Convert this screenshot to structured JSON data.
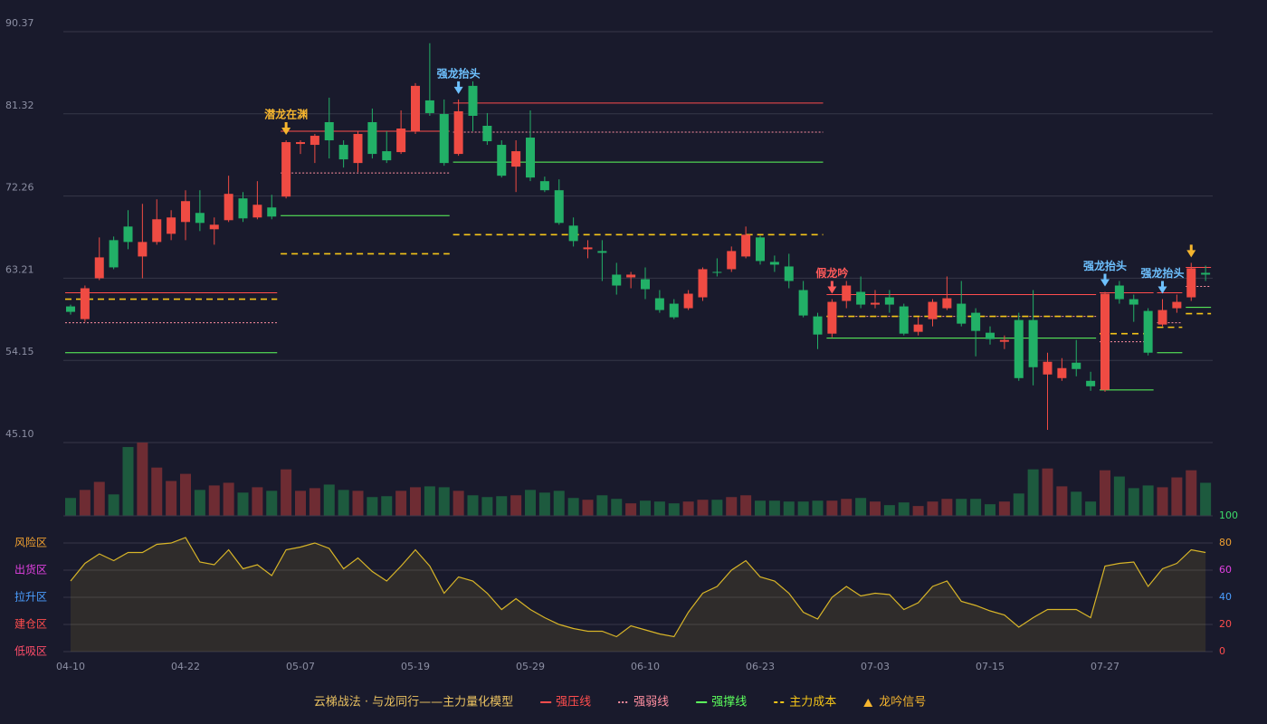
{
  "chart_data": {
    "type": "candlestick",
    "title": "云梯战法 · 与龙同行——主力量化模型",
    "categories": [
      "04-10",
      null,
      null,
      null,
      null,
      null,
      null,
      null,
      "04-22",
      null,
      null,
      null,
      null,
      null,
      null,
      null,
      "05-07",
      null,
      null,
      null,
      null,
      null,
      null,
      null,
      "05-19",
      null,
      null,
      null,
      null,
      null,
      null,
      null,
      "05-29",
      null,
      null,
      null,
      null,
      null,
      null,
      null,
      "06-10",
      null,
      null,
      null,
      null,
      null,
      null,
      null,
      "06-23",
      null,
      null,
      null,
      null,
      null,
      null,
      null,
      "07-03",
      null,
      null,
      null,
      null,
      null,
      null,
      null,
      "07-15",
      null,
      null,
      null,
      null,
      null,
      null,
      null,
      "07-27",
      null,
      null,
      null,
      null,
      null,
      null,
      null
    ],
    "open": [
      60.1,
      58.7,
      63.2,
      67.4,
      68.9,
      65.6,
      67.2,
      68.1,
      69.4,
      70.4,
      68.6,
      69.6,
      72.0,
      69.9,
      71.0,
      72.2,
      78.0,
      77.9,
      80.4,
      77.9,
      75.9,
      80.4,
      77.2,
      77.1,
      79.4,
      82.8,
      81.3,
      76.9,
      84.4,
      80.0,
      77.9,
      75.5,
      78.7,
      73.9,
      72.9,
      69.0,
      66.4,
      66.2,
      63.6,
      63.3,
      63.1,
      61.0,
      60.4,
      59.9,
      61.1,
      63.9,
      64.2,
      65.6,
      67.7,
      65.0,
      64.5,
      61.9,
      59.0,
      57.1,
      60.7,
      61.7,
      60.3,
      61.1,
      60.1,
      57.3,
      58.7,
      59.9,
      60.4,
      59.4,
      57.2,
      56.2,
      58.6,
      58.6,
      52.6,
      52.2,
      53.9,
      51.9,
      50.9,
      62.4,
      60.9,
      59.6,
      58.1,
      59.9,
      61.1,
      63.8
    ],
    "high": [
      60.3,
      62.4,
      67.7,
      67.8,
      70.7,
      71.4,
      71.9,
      70.7,
      72.9,
      72.9,
      69.9,
      74.5,
      72.7,
      73.9,
      72.4,
      78.4,
      78.4,
      79.1,
      83.1,
      78.4,
      79.4,
      81.9,
      79.4,
      81.7,
      84.7,
      89.1,
      82.9,
      82.9,
      84.9,
      81.4,
      78.4,
      78.4,
      81.7,
      74.4,
      74.1,
      69.9,
      67.4,
      67.4,
      64.9,
      63.9,
      64.4,
      61.9,
      60.9,
      61.9,
      64.4,
      65.4,
      66.7,
      68.9,
      67.9,
      65.7,
      65.9,
      62.9,
      59.4,
      60.9,
      62.9,
      63.4,
      61.9,
      61.9,
      60.4,
      58.9,
      60.9,
      63.4,
      62.9,
      59.9,
      57.9,
      56.9,
      59.4,
      61.9,
      55.0,
      54.4,
      56.4,
      52.9,
      61.7,
      62.9,
      61.4,
      59.9,
      60.9,
      61.4,
      64.9,
      64.6
    ],
    "low": [
      59.2,
      58.4,
      63.0,
      64.2,
      66.4,
      63.2,
      66.9,
      67.4,
      67.4,
      68.4,
      66.9,
      69.4,
      69.4,
      69.7,
      69.7,
      72.0,
      76.9,
      75.9,
      76.4,
      75.4,
      74.9,
      76.4,
      75.9,
      76.9,
      79.1,
      81.1,
      75.6,
      76.7,
      79.4,
      77.9,
      74.3,
      72.7,
      73.9,
      72.7,
      69.1,
      66.7,
      65.4,
      62.9,
      61.4,
      62.1,
      60.9,
      59.4,
      58.7,
      59.7,
      60.7,
      63.4,
      63.9,
      65.4,
      64.7,
      63.9,
      62.1,
      58.9,
      55.4,
      56.7,
      59.9,
      59.9,
      59.9,
      59.4,
      56.9,
      56.9,
      57.9,
      59.7,
      57.9,
      54.6,
      55.9,
      55.4,
      51.9,
      51.4,
      46.5,
      51.9,
      52.4,
      50.8,
      50.7,
      60.4,
      58.4,
      54.7,
      57.9,
      59.4,
      60.7,
      62.9
    ],
    "close": [
      59.5,
      62.1,
      65.5,
      64.4,
      67.2,
      67.2,
      69.7,
      69.9,
      71.7,
      69.3,
      69.1,
      72.5,
      69.8,
      71.3,
      70.0,
      78.2,
      78.2,
      78.9,
      78.4,
      76.3,
      79.1,
      76.9,
      76.2,
      79.7,
      84.4,
      81.4,
      75.9,
      81.6,
      81.1,
      78.3,
      74.5,
      77.2,
      74.3,
      72.9,
      69.3,
      67.3,
      66.6,
      66.0,
      62.4,
      63.6,
      62.0,
      59.7,
      58.9,
      61.5,
      64.2,
      63.8,
      66.2,
      68.0,
      65.1,
      64.7,
      62.9,
      59.1,
      57.0,
      60.6,
      62.4,
      60.3,
      60.5,
      60.3,
      57.1,
      58.1,
      60.6,
      61.0,
      58.2,
      57.4,
      56.5,
      56.4,
      52.2,
      53.4,
      54.0,
      53.3,
      53.2,
      51.3,
      61.5,
      60.9,
      60.3,
      55.0,
      59.7,
      60.6,
      64.3,
      63.6
    ],
    "ylim": [
      45.1,
      90.37
    ],
    "yticks": [
      {
        "value": 45.1,
        "label": "45.10"
      },
      54.15,
      63.21,
      72.26,
      81.32,
      90.37
    ],
    "grid": true,
    "up_color": "#ef4b43",
    "down_color": "#22b067",
    "volume": {
      "values": [
        20,
        29,
        38,
        24,
        77,
        82,
        54,
        39,
        47,
        29,
        34,
        37,
        26,
        32,
        28,
        52,
        28,
        31,
        35,
        29,
        28,
        21,
        22,
        28,
        32,
        33,
        32,
        28,
        23,
        21,
        22,
        23,
        29,
        26,
        28,
        20,
        18,
        23,
        19,
        14,
        17,
        16,
        14,
        16,
        18,
        18,
        21,
        23,
        17,
        17,
        16,
        16,
        17,
        17,
        19,
        20,
        16,
        12,
        15,
        11,
        16,
        19,
        19,
        19,
        13,
        16,
        25,
        52,
        53,
        33,
        27,
        16,
        51,
        44,
        31,
        34,
        32,
        43,
        51,
        37
      ],
      "ylim": [
        0,
        82
      ],
      "up_color": "#6e2c33",
      "down_color": "#1d5a3e"
    },
    "oscillator": {
      "values": [
        52,
        65,
        72,
        67,
        73,
        73,
        79,
        80,
        84,
        66,
        64,
        75,
        61,
        64,
        56,
        75,
        77,
        80,
        76,
        61,
        69,
        59,
        52,
        63,
        75,
        63,
        43,
        55,
        52,
        43,
        31,
        39,
        31,
        25,
        20,
        17,
        15,
        15,
        11,
        19,
        16,
        13,
        11,
        29,
        43,
        48,
        60,
        67,
        55,
        52,
        43,
        29,
        24,
        40,
        48,
        41,
        43,
        42,
        31,
        36,
        48,
        52,
        37,
        34,
        30,
        27,
        18,
        25,
        31,
        31,
        31,
        25,
        63,
        65,
        66,
        48,
        61,
        65,
        75,
        73
      ],
      "ylim": [
        0,
        100
      ],
      "yticks": [
        0,
        20,
        40,
        60,
        80,
        100
      ],
      "ytick_colors": [
        "#ff4d4d",
        "#ff4d4d",
        "#4a9eff",
        "#e040e0",
        "#f0a030",
        "#3ddc6a"
      ],
      "color": "#d8b528",
      "zones": [
        {
          "label": "风险区",
          "value": 80,
          "color": "#f0a030"
        },
        {
          "label": "出货区",
          "value": 60,
          "color": "#e040e0"
        },
        {
          "label": "拉升区",
          "value": 40,
          "color": "#4a9eff"
        },
        {
          "label": "建仓区",
          "value": 20,
          "color": "#ff4d4d"
        },
        {
          "label": "低吸区",
          "value": 0,
          "color": "#ff4d6a"
        }
      ]
    },
    "levels": [
      {
        "start": 0,
        "end": 14,
        "pressure": 61.6,
        "weak": 58.3,
        "support": 55.0,
        "cost": 60.9
      },
      {
        "start": 15,
        "end": 26,
        "pressure": 79.4,
        "weak": 74.8,
        "support": 70.1,
        "cost": 65.9
      },
      {
        "start": 27,
        "end": 52,
        "pressure": 82.5,
        "weak": 79.3,
        "support": 76.0,
        "cost": 68.0
      },
      {
        "start": 53,
        "end": 71,
        "pressure": 61.4,
        "weak": 59.0,
        "support": 56.6,
        "cost": 59.0
      },
      {
        "start": 72,
        "end": 75,
        "pressure": 61.6,
        "weak": 56.2,
        "support": 50.9,
        "cost": 57.1
      },
      {
        "start": 76,
        "end": 77,
        "pressure": 61.6,
        "weak": 58.3,
        "support": 55.0,
        "cost": 57.8
      },
      {
        "start": 78,
        "end": 79,
        "pressure": 64.4,
        "weak": 62.3,
        "support": 60.0,
        "cost": 59.3
      }
    ],
    "legend": [
      {
        "name": "强压线",
        "key": "pressure",
        "color": "#ff4d4d",
        "style": "solid"
      },
      {
        "name": "强弱线",
        "key": "weak",
        "color": "#ff8fa0",
        "style": "dotted"
      },
      {
        "name": "强撑线",
        "key": "support",
        "color": "#5cff5c",
        "style": "solid"
      },
      {
        "name": "主力成本",
        "key": "cost",
        "color": "#f5c518",
        "style": "dashed"
      },
      {
        "name": "龙吟信号",
        "color": "#f5b52e",
        "style": "triangle"
      }
    ],
    "signals": [
      {
        "index": 15,
        "label": "潜龙在渊",
        "color": "#f5b52e"
      },
      {
        "index": 27,
        "label": "强龙抬头",
        "color": "#6ec1ff"
      },
      {
        "index": 53,
        "label": "假龙吟",
        "color": "#ff5a5a"
      },
      {
        "index": 72,
        "label": "强龙抬头",
        "color": "#6ec1ff"
      },
      {
        "index": 76,
        "label": "强龙抬头",
        "color": "#6ec1ff"
      },
      {
        "index": 78,
        "color": "#f5b52e"
      }
    ]
  }
}
